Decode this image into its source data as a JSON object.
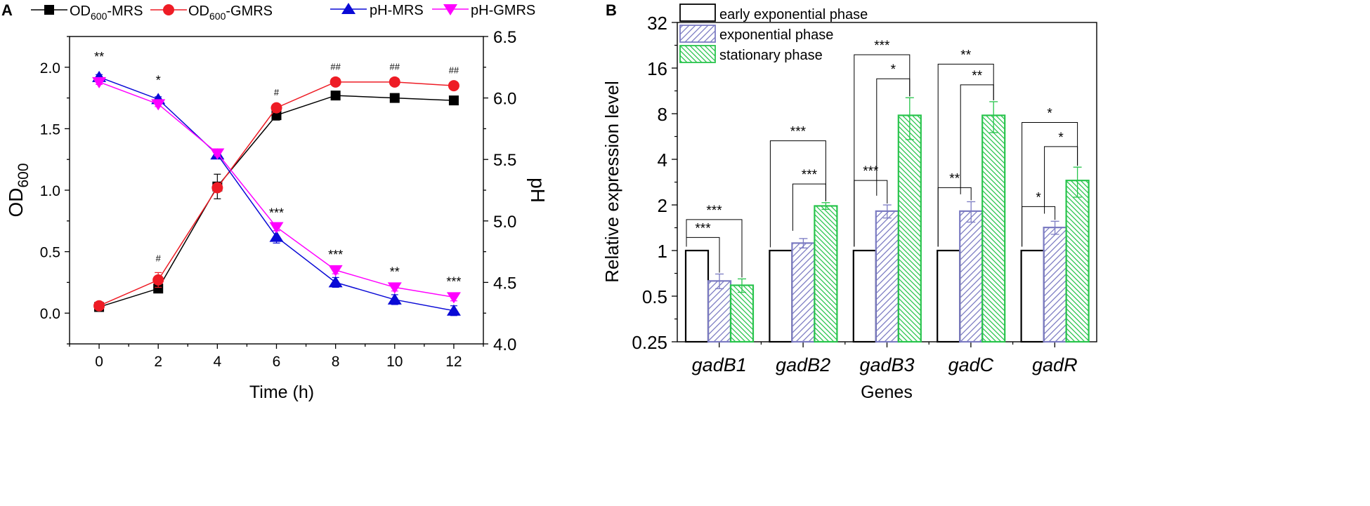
{
  "chart_data": [
    {
      "panel_label": "A",
      "type": "line",
      "xlabel": "Time (h)",
      "ylabel_left": "OD",
      "ylabel_left_sub": "600",
      "ylabel_right": "pH",
      "xlim": [
        -1,
        13
      ],
      "ylim_left": [
        -0.25,
        2.25
      ],
      "ylim_right": [
        4.0,
        6.5
      ],
      "x_ticks": [
        "0",
        "2",
        "4",
        "6",
        "8",
        "10",
        "12"
      ],
      "y_left_ticks": [
        "0.0",
        "0.5",
        "1.0",
        "1.5",
        "2.0"
      ],
      "y_right_ticks": [
        "4.0",
        "4.5",
        "5.0",
        "5.5",
        "6.0",
        "6.5"
      ],
      "legend": [
        {
          "main": "OD",
          "sub": "600",
          "tail": "-MRS"
        },
        {
          "main": "OD",
          "sub": "600",
          "tail": "-GMRS"
        },
        {
          "main": "pH-MRS",
          "sub": "",
          "tail": ""
        },
        {
          "main": "pH-GMRS",
          "sub": "",
          "tail": ""
        }
      ],
      "series": [
        {
          "name": "OD600-MRS",
          "axis": "left",
          "color": "#000000",
          "marker": "square",
          "x": [
            0,
            2,
            4,
            6,
            8,
            10,
            12
          ],
          "values": [
            0.05,
            0.2,
            1.03,
            1.61,
            1.77,
            1.75,
            1.73
          ],
          "errors": [
            0.02,
            0.03,
            0.1,
            0.04,
            0.02,
            0.02,
            0.02
          ]
        },
        {
          "name": "OD600-GMRS",
          "axis": "left",
          "color": "#ee1c25",
          "marker": "circle",
          "x": [
            0,
            2,
            4,
            6,
            8,
            10,
            12
          ],
          "values": [
            0.06,
            0.27,
            1.02,
            1.67,
            1.88,
            1.88,
            1.85
          ],
          "errors": [
            0.02,
            0.06,
            0.03,
            0.03,
            0.02,
            0.02,
            0.02
          ]
        },
        {
          "name": "pH-MRS",
          "axis": "right",
          "color": "#0a0ad6",
          "marker": "triangle-up",
          "x": [
            0,
            2,
            4,
            6,
            8,
            10,
            12
          ],
          "values": [
            6.17,
            5.99,
            5.54,
            4.87,
            4.5,
            4.36,
            4.27
          ],
          "errors": [
            0.02,
            0.02,
            0.03,
            0.05,
            0.04,
            0.04,
            0.04
          ]
        },
        {
          "name": "pH-GMRS",
          "axis": "right",
          "color": "#ff00ff",
          "marker": "triangle-down",
          "x": [
            0,
            2,
            4,
            6,
            8,
            10,
            12
          ],
          "values": [
            6.13,
            5.95,
            5.55,
            4.95,
            4.6,
            4.46,
            4.38
          ],
          "errors": [
            0.02,
            0.02,
            0.02,
            0.03,
            0.03,
            0.03,
            0.03
          ]
        }
      ],
      "annotations": [
        {
          "x": 0,
          "y": 6.3,
          "axis": "right",
          "text": "**"
        },
        {
          "x": 2,
          "y": 6.11,
          "axis": "right",
          "text": "*"
        },
        {
          "x": 2,
          "y": 0.42,
          "axis": "left",
          "text": "#"
        },
        {
          "x": 6,
          "y": 1.77,
          "axis": "left",
          "text": "#"
        },
        {
          "x": 8,
          "y": 1.98,
          "axis": "left",
          "text": "##"
        },
        {
          "x": 10,
          "y": 1.98,
          "axis": "left",
          "text": "##"
        },
        {
          "x": 12,
          "y": 1.95,
          "axis": "left",
          "text": "##"
        },
        {
          "x": 6,
          "y": 5.03,
          "axis": "right",
          "text": "***"
        },
        {
          "x": 8,
          "y": 4.69,
          "axis": "right",
          "text": "***"
        },
        {
          "x": 10,
          "y": 4.55,
          "axis": "right",
          "text": "**"
        },
        {
          "x": 12,
          "y": 4.47,
          "axis": "right",
          "text": "***"
        }
      ]
    },
    {
      "panel_label": "B",
      "type": "bar",
      "scale": "log2",
      "xlabel": "Genes",
      "ylabel": "Relative expression level",
      "ylim": [
        0.25,
        32
      ],
      "y_ticks": [
        "0.25",
        "0.5",
        "1",
        "2",
        "4",
        "8",
        "16",
        "32"
      ],
      "categories": [
        "gadB1",
        "gadB2",
        "gadB3",
        "gadC",
        "gadR"
      ],
      "series": [
        {
          "name": "early exponential phase",
          "color": "#000000",
          "pattern": "none",
          "values": [
            1,
            1,
            1,
            1,
            1
          ],
          "errors": [
            0,
            0,
            0,
            0,
            0
          ]
        },
        {
          "name": "exponential phase",
          "color": "#7b7bc2",
          "pattern": "hatch-right",
          "values": [
            0.63,
            1.12,
            1.82,
            1.82,
            1.42
          ],
          "errors": [
            0.07,
            0.08,
            0.18,
            0.28,
            0.14
          ]
        },
        {
          "name": "stationary phase",
          "color": "#28c44c",
          "pattern": "hatch-left",
          "values": [
            0.59,
            1.97,
            7.8,
            7.8,
            2.9
          ],
          "errors": [
            0.06,
            0.1,
            2.4,
            1.8,
            0.65
          ]
        }
      ],
      "significance": [
        {
          "category": 0,
          "from": 0,
          "to": 2,
          "left_y": 1.22,
          "top_y": 1.6,
          "text": "***"
        },
        {
          "category": 0,
          "from": 0,
          "to": 1,
          "left_y": 1.06,
          "top_y": 1.22,
          "text": "***"
        },
        {
          "category": 1,
          "from": 0,
          "to": 2,
          "left_y": 1.05,
          "top_y": 5.3,
          "text": "***"
        },
        {
          "category": 1,
          "from": 1,
          "to": 2,
          "left_y": 1.35,
          "top_y": 2.75,
          "text": "***"
        },
        {
          "category": 2,
          "from": 0,
          "to": 2,
          "left_y": 1.06,
          "top_y": 19.6,
          "text": "***"
        },
        {
          "category": 2,
          "from": 1,
          "to": 2,
          "left_y": 2.3,
          "top_y": 13.6,
          "text": "*"
        },
        {
          "category": 2,
          "from": 0,
          "to": 1,
          "left_y": 1.06,
          "top_y": 2.9,
          "text": "***"
        },
        {
          "category": 3,
          "from": 0,
          "to": 2,
          "left_y": 1.06,
          "top_y": 17.0,
          "text": "**"
        },
        {
          "category": 3,
          "from": 1,
          "to": 2,
          "left_y": 2.35,
          "top_y": 12.4,
          "text": "**"
        },
        {
          "category": 3,
          "from": 0,
          "to": 1,
          "left_y": 1.06,
          "top_y": 2.6,
          "text": "**"
        },
        {
          "category": 4,
          "from": 0,
          "to": 2,
          "left_y": 1.06,
          "top_y": 7.0,
          "text": "*"
        },
        {
          "category": 4,
          "from": 1,
          "to": 2,
          "left_y": 1.75,
          "top_y": 4.85,
          "text": "*"
        },
        {
          "category": 4,
          "from": 0,
          "to": 1,
          "left_y": 1.06,
          "top_y": 1.95,
          "text": "*"
        }
      ]
    }
  ]
}
